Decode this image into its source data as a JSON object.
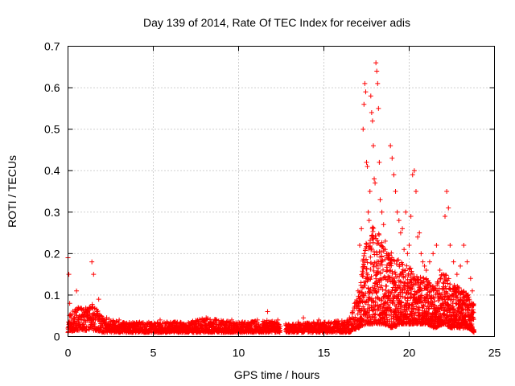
{
  "chart_data": {
    "type": "scatter",
    "title": "Day 139 of 2014, Rate Of TEC Index for receiver adis",
    "xlabel": "GPS time / hours",
    "ylabel": "ROTI / TECUs",
    "xlim": [
      0,
      25
    ],
    "ylim": [
      0,
      0.7
    ],
    "x_ticks": [
      {
        "value": 0,
        "label": "0"
      },
      {
        "value": 5,
        "label": "5"
      },
      {
        "value": 10,
        "label": "10"
      },
      {
        "value": 15,
        "label": "15"
      },
      {
        "value": 20,
        "label": "20"
      },
      {
        "value": 25,
        "label": "25"
      }
    ],
    "y_ticks": [
      {
        "value": 0,
        "label": "0"
      },
      {
        "value": 0.1,
        "label": "0.1"
      },
      {
        "value": 0.2,
        "label": "0.2"
      },
      {
        "value": 0.3,
        "label": "0.3"
      },
      {
        "value": 0.4,
        "label": "0.4"
      },
      {
        "value": 0.5,
        "label": "0.5"
      },
      {
        "value": 0.6,
        "label": "0.6"
      },
      {
        "value": 0.7,
        "label": "0.7"
      }
    ],
    "grid": true,
    "marker": "plus",
    "color": "#ff0000",
    "series": [
      {
        "name": "ROTI",
        "x": [
          0.0,
          0.05,
          0.1,
          0.15,
          0.2,
          0.3,
          0.4,
          0.5,
          0.6,
          0.7,
          0.8,
          0.9,
          1.0,
          1.1,
          1.2,
          1.3,
          1.4,
          1.5,
          1.6,
          1.7,
          1.8,
          1.9,
          2.0,
          2.2,
          2.4,
          2.6,
          2.8,
          3.0,
          3.3,
          3.6,
          3.9,
          4.2,
          4.5,
          4.8,
          5.1,
          5.4,
          5.7,
          6.0,
          6.3,
          6.6,
          6.9,
          7.2,
          7.5,
          7.8,
          8.1,
          8.4,
          8.7,
          9.0,
          9.3,
          9.6,
          9.9,
          10.2,
          10.5,
          10.8,
          11.1,
          11.4,
          11.7,
          12.0,
          12.3,
          12.9,
          13.2,
          13.5,
          13.8,
          14.1,
          14.4,
          14.7,
          15.0,
          15.3,
          15.6,
          15.9,
          16.2,
          16.5,
          16.8,
          17.0,
          17.1,
          17.2,
          17.3,
          17.35,
          17.4,
          17.45,
          17.5,
          17.55,
          17.6,
          17.65,
          17.7,
          17.75,
          17.8,
          17.85,
          17.9,
          17.95,
          18.0,
          18.05,
          18.1,
          18.15,
          18.2,
          18.25,
          18.3,
          18.4,
          18.5,
          18.6,
          18.7,
          18.8,
          18.9,
          19.0,
          19.1,
          19.2,
          19.3,
          19.4,
          19.5,
          19.6,
          19.7,
          19.8,
          19.9,
          20.0,
          20.1,
          20.2,
          20.3,
          20.4,
          20.5,
          20.6,
          20.7,
          20.8,
          20.9,
          21.0,
          21.2,
          21.4,
          21.6,
          21.8,
          22.0,
          22.1,
          22.2,
          22.3,
          22.4,
          22.6,
          22.8,
          23.0,
          23.2,
          23.4,
          23.6,
          23.7
        ],
        "y": [
          0.19,
          0.15,
          0.08,
          0.05,
          0.03,
          0.04,
          0.06,
          0.11,
          0.07,
          0.04,
          0.05,
          0.03,
          0.04,
          0.06,
          0.05,
          0.07,
          0.18,
          0.15,
          0.04,
          0.06,
          0.09,
          0.05,
          0.04,
          0.03,
          0.025,
          0.03,
          0.02,
          0.04,
          0.025,
          0.03,
          0.02,
          0.035,
          0.03,
          0.025,
          0.03,
          0.04,
          0.03,
          0.025,
          0.035,
          0.03,
          0.025,
          0.03,
          0.035,
          0.04,
          0.045,
          0.035,
          0.04,
          0.03,
          0.035,
          0.04,
          0.03,
          0.025,
          0.03,
          0.035,
          0.04,
          0.03,
          0.06,
          0.03,
          0.04,
          0.025,
          0.03,
          0.035,
          0.045,
          0.03,
          0.035,
          0.04,
          0.03,
          0.035,
          0.025,
          0.03,
          0.035,
          0.045,
          0.08,
          0.11,
          0.22,
          0.26,
          0.5,
          0.56,
          0.61,
          0.59,
          0.42,
          0.41,
          0.3,
          0.28,
          0.35,
          0.58,
          0.54,
          0.52,
          0.46,
          0.38,
          0.37,
          0.66,
          0.64,
          0.61,
          0.55,
          0.42,
          0.33,
          0.3,
          0.27,
          0.23,
          0.2,
          0.19,
          0.46,
          0.43,
          0.39,
          0.35,
          0.3,
          0.28,
          0.25,
          0.26,
          0.21,
          0.3,
          0.2,
          0.22,
          0.29,
          0.39,
          0.4,
          0.35,
          0.24,
          0.25,
          0.2,
          0.18,
          0.17,
          0.16,
          0.18,
          0.2,
          0.22,
          0.16,
          0.12,
          0.29,
          0.35,
          0.31,
          0.22,
          0.18,
          0.15,
          0.17,
          0.22,
          0.18,
          0.14,
          0.11
        ],
        "band": [
          [
            0.0,
            0.01,
            0.05
          ],
          [
            0.5,
            0.015,
            0.07
          ],
          [
            1.0,
            0.015,
            0.07
          ],
          [
            1.5,
            0.015,
            0.08
          ],
          [
            2.0,
            0.01,
            0.05
          ],
          [
            3.0,
            0.01,
            0.035
          ],
          [
            5.0,
            0.01,
            0.035
          ],
          [
            7.0,
            0.01,
            0.035
          ],
          [
            8.0,
            0.01,
            0.045
          ],
          [
            10.0,
            0.01,
            0.035
          ],
          [
            12.0,
            0.01,
            0.04
          ],
          [
            12.4,
            0.01,
            0.035
          ],
          [
            12.8,
            0.01,
            0.03
          ],
          [
            15.0,
            0.01,
            0.035
          ],
          [
            16.5,
            0.01,
            0.04
          ],
          [
            17.0,
            0.02,
            0.1
          ],
          [
            17.5,
            0.03,
            0.25
          ],
          [
            18.0,
            0.03,
            0.27
          ],
          [
            18.5,
            0.03,
            0.22
          ],
          [
            19.0,
            0.02,
            0.2
          ],
          [
            19.5,
            0.03,
            0.18
          ],
          [
            20.0,
            0.03,
            0.17
          ],
          [
            20.5,
            0.03,
            0.15
          ],
          [
            21.0,
            0.03,
            0.14
          ],
          [
            21.5,
            0.02,
            0.12
          ],
          [
            22.0,
            0.03,
            0.16
          ],
          [
            22.5,
            0.02,
            0.13
          ],
          [
            23.0,
            0.02,
            0.12
          ],
          [
            23.5,
            0.02,
            0.1
          ],
          [
            23.8,
            0.01,
            0.08
          ]
        ]
      }
    ]
  }
}
